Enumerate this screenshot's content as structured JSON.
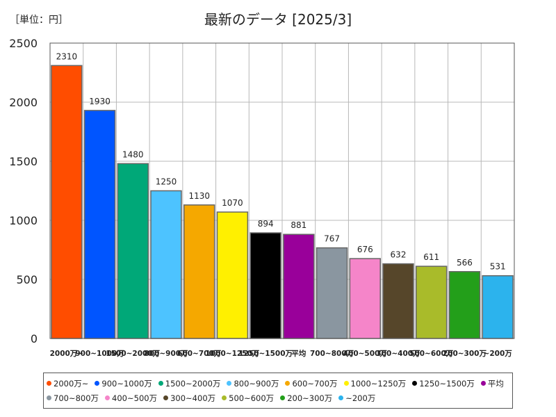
{
  "unit_label": "［単位：円］",
  "chart_data": {
    "type": "bar",
    "title": "最新のデータ [2025/3]",
    "categories": [
      "2000万~",
      "900~1000万",
      "1500~2000万",
      "800~900万",
      "600~700万",
      "1000~1250万",
      "1250~1500万",
      "平均",
      "700~800万",
      "400~500万",
      "300~400万",
      "500~600万",
      "200~300万",
      "~200万"
    ],
    "x_tick_labels": [
      "2000万~",
      "900~1000万",
      "1500~2000万",
      "800~900万",
      "600~700万",
      "1000~1250万",
      "1250~1500万",
      "平均",
      "700~800万",
      "400~500万",
      "300~400万",
      "500~600万",
      "200~300万",
      "~200万"
    ],
    "values": [
      2310,
      1930,
      1480,
      1250,
      1130,
      1070,
      894,
      881,
      767,
      676,
      632,
      611,
      566,
      531
    ],
    "data_labels": [
      "2310",
      "1930",
      "1480",
      "1250",
      "1130",
      "1070",
      "894",
      "881",
      "767",
      "676",
      "632",
      "611",
      "566",
      "531"
    ],
    "colors": [
      "#ff4d00",
      "#0055ff",
      "#00a878",
      "#4dc3ff",
      "#f5a800",
      "#fff000",
      "#000000",
      "#99009a",
      "#8a96a0",
      "#f585c9",
      "#56462a",
      "#a9bb2a",
      "#239f1a",
      "#2cb3ed"
    ],
    "y_ticks": [
      "0",
      "500",
      "1000",
      "1500",
      "2000",
      "2500"
    ],
    "ylim": [
      0,
      2500
    ],
    "grid": true,
    "legend_position": "bottom",
    "legend": [
      "2000万~",
      "900~1000万",
      "1500~2000万",
      "800~900万",
      "600~700万",
      "1000~1250万",
      "1250~1500万",
      "平均",
      "700~800万",
      "400~500万",
      "300~400万",
      "500~600万",
      "200~300万",
      "~200万"
    ]
  }
}
